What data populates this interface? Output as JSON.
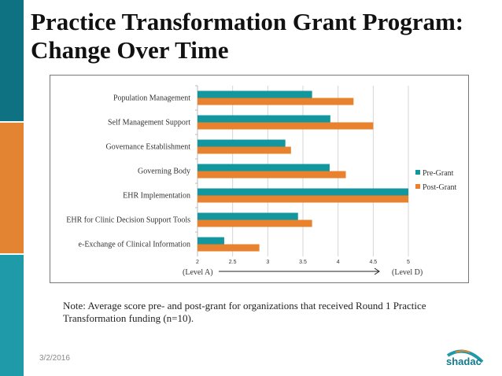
{
  "slide": {
    "title_line1": "Practice Transformation Grant Program:",
    "title_line2": "Change Over Time",
    "note": "Note: Average score pre- and post-grant for organizations that received Round 1 Practice Transformation funding (n=10).",
    "date": "3/2/2016",
    "logo_text": "shadac",
    "colors": {
      "strip_top": "#0e7282",
      "strip_mid": "#e38432",
      "strip_bottom": "#1e9aa8"
    }
  },
  "chart_data": {
    "type": "bar",
    "orientation": "horizontal",
    "categories": [
      "Population Management",
      "Self Management Support",
      "Governance Establishment",
      "Governing Body",
      "EHR Implementation",
      "EHR for Clinic Decision Support Tools",
      "e-Exchange of Clinical Information"
    ],
    "series": [
      {
        "name": "Pre-Grant",
        "color": "#13979f",
        "values": [
          3.63,
          3.89,
          3.25,
          3.88,
          5.0,
          3.43,
          2.38
        ]
      },
      {
        "name": "Post-Grant",
        "color": "#e8822e",
        "values": [
          4.22,
          4.5,
          3.33,
          4.11,
          5.0,
          3.63,
          2.88
        ]
      }
    ],
    "xlim": [
      2,
      5
    ],
    "xticks": [
      "2",
      "2.5",
      "3",
      "3.5",
      "4",
      "4.5",
      "5"
    ],
    "axis_left_label": "(Level A)",
    "axis_right_label": "(Level D)",
    "grid": true,
    "legend": "right"
  }
}
